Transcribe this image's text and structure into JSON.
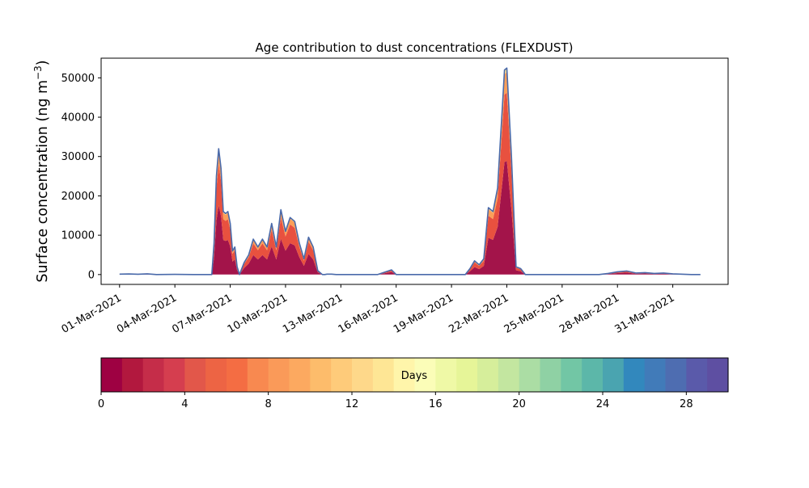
{
  "chart_data": [
    {
      "type": "area",
      "title": "Age contribution to dust concentrations (FLEXDUST)",
      "xlabel": "",
      "ylabel": "Surface concentration (ng m",
      "ylabel_sup": "−3",
      "ylabel_close": ")",
      "stacked": true,
      "xlim": [
        "2021-02-28T00:00",
        "2021-04-03T00:00"
      ],
      "ylim": [
        -2500,
        55000
      ],
      "xticks": [
        "01-Mar-2021",
        "04-Mar-2021",
        "07-Mar-2021",
        "10-Mar-2021",
        "13-Mar-2021",
        "16-Mar-2021",
        "19-Mar-2021",
        "22-Mar-2021",
        "25-Mar-2021",
        "28-Mar-2021",
        "31-Mar-2021"
      ],
      "yticks": [
        0,
        10000,
        20000,
        30000,
        40000,
        50000
      ],
      "outline_color": "#4a6aaa",
      "x": [
        "2021-03-01T00:00",
        "2021-03-01T12:00",
        "2021-03-02T00:00",
        "2021-03-02T12:00",
        "2021-03-03T00:00",
        "2021-03-04T00:00",
        "2021-03-05T00:00",
        "2021-03-05T18:00",
        "2021-03-06T00:00",
        "2021-03-06T03:00",
        "2021-03-06T06:00",
        "2021-03-06T09:00",
        "2021-03-06T12:00",
        "2021-03-06T15:00",
        "2021-03-06T18:00",
        "2021-03-06T21:00",
        "2021-03-07T00:00",
        "2021-03-07T03:00",
        "2021-03-07T06:00",
        "2021-03-07T09:00",
        "2021-03-07T12:00",
        "2021-03-07T18:00",
        "2021-03-08T00:00",
        "2021-03-08T06:00",
        "2021-03-08T12:00",
        "2021-03-08T18:00",
        "2021-03-09T00:00",
        "2021-03-09T06:00",
        "2021-03-09T12:00",
        "2021-03-09T18:00",
        "2021-03-10T00:00",
        "2021-03-10T06:00",
        "2021-03-10T12:00",
        "2021-03-10T18:00",
        "2021-03-11T00:00",
        "2021-03-11T06:00",
        "2021-03-11T12:00",
        "2021-03-11T18:00",
        "2021-03-12T00:00",
        "2021-03-12T03:00",
        "2021-03-12T06:00",
        "2021-03-12T12:00",
        "2021-03-12T18:00",
        "2021-03-13T00:00",
        "2021-03-14T00:00",
        "2021-03-15T00:00",
        "2021-03-15T18:00",
        "2021-03-16T00:00",
        "2021-03-16T06:00",
        "2021-03-17T00:00",
        "2021-03-18T00:00",
        "2021-03-19T00:00",
        "2021-03-19T18:00",
        "2021-03-20T00:00",
        "2021-03-20T06:00",
        "2021-03-20T12:00",
        "2021-03-20T18:00",
        "2021-03-21T00:00",
        "2021-03-21T06:00",
        "2021-03-21T12:00",
        "2021-03-21T15:00",
        "2021-03-21T18:00",
        "2021-03-21T21:00",
        "2021-03-22T00:00",
        "2021-03-22T06:00",
        "2021-03-22T12:00",
        "2021-03-22T18:00",
        "2021-03-23T00:00",
        "2021-03-23T06:00",
        "2021-03-23T12:00",
        "2021-03-23T18:00",
        "2021-03-24T00:00",
        "2021-03-25T00:00",
        "2021-03-26T00:00",
        "2021-03-27T00:00",
        "2021-03-27T12:00",
        "2021-03-28T00:00",
        "2021-03-28T12:00",
        "2021-03-29T00:00",
        "2021-03-29T12:00",
        "2021-03-30T00:00",
        "2021-03-30T12:00",
        "2021-03-31T00:00",
        "2021-04-01T00:00",
        "2021-04-01T12:00"
      ],
      "total": [
        100,
        150,
        80,
        200,
        0,
        50,
        0,
        0,
        0,
        8000,
        25000,
        32000,
        27000,
        16000,
        15500,
        16000,
        13000,
        6000,
        7000,
        2000,
        0,
        3000,
        5000,
        9000,
        7000,
        9000,
        7000,
        13000,
        7000,
        16500,
        11000,
        14500,
        13500,
        8000,
        4000,
        9500,
        7000,
        1000,
        0,
        0,
        100,
        100,
        0,
        0,
        0,
        0,
        1200,
        0,
        0,
        0,
        0,
        0,
        0,
        1500,
        3500,
        2500,
        4000,
        17000,
        16000,
        22000,
        32000,
        42000,
        52000,
        52500,
        30000,
        2000,
        1500,
        0,
        0,
        0,
        0,
        0,
        0,
        0,
        0,
        300,
        700,
        900,
        400,
        500,
        300,
        400,
        200,
        0,
        0
      ],
      "age_bins_days": [
        0,
        4,
        8,
        12,
        16
      ],
      "age_share": [
        0.55,
        0.33,
        0.1,
        0.02
      ],
      "age_colors": [
        "#a3144a",
        "#e8513f",
        "#fb9f59",
        "#fee190"
      ],
      "colorbar": {
        "label": "Days",
        "min": 0,
        "max": 30,
        "ticks": [
          0,
          4,
          8,
          12,
          16,
          20,
          24,
          28
        ],
        "colors": [
          "#9e0142",
          "#b2183e",
          "#c52d49",
          "#d53e4f",
          "#e2574a",
          "#ed6444",
          "#f46d43",
          "#f88950",
          "#fa9a59",
          "#fca960",
          "#fdbc6b",
          "#fecb7a",
          "#fed88a",
          "#fee695",
          "#fff5aa",
          "#fbfdb8",
          "#eff9a6",
          "#e6f598",
          "#d6ee9b",
          "#c3e6a0",
          "#abdda4",
          "#8fd1a4",
          "#72c6a5",
          "#5cb7a9",
          "#4aa4b0",
          "#3288bd",
          "#417bb9",
          "#4e6db1",
          "#5a5aaa",
          "#5e4fa2"
        ]
      }
    }
  ]
}
